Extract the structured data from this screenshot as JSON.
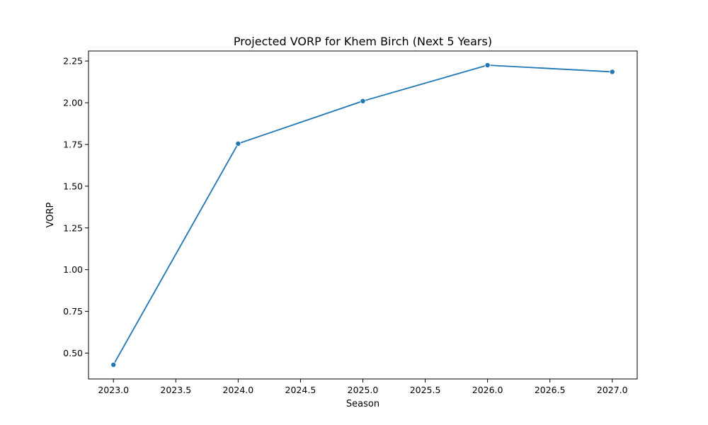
{
  "chart_data": {
    "type": "line",
    "title": "Projected VORP for Khem Birch (Next 5 Years)",
    "xlabel": "Season",
    "ylabel": "VORP",
    "x": [
      2023.0,
      2024.0,
      2025.0,
      2026.0,
      2027.0
    ],
    "series": [
      {
        "values": [
          0.43,
          1.755,
          2.01,
          2.225,
          2.185
        ],
        "color": "#1f77b4",
        "marker": "circle"
      }
    ],
    "xlim": [
      2022.8,
      2027.2
    ],
    "ylim": [
      0.345,
      2.31
    ],
    "xticks": [
      2023.0,
      2023.5,
      2024.0,
      2024.5,
      2025.0,
      2025.5,
      2026.0,
      2026.5,
      2027.0
    ],
    "xtick_labels": [
      "2023.0",
      "2023.5",
      "2024.0",
      "2024.5",
      "2025.0",
      "2025.5",
      "2026.0",
      "2026.5",
      "2027.0"
    ],
    "yticks": [
      0.5,
      0.75,
      1.0,
      1.25,
      1.5,
      1.75,
      2.0,
      2.25
    ],
    "ytick_labels": [
      "0.50",
      "0.75",
      "1.00",
      "1.25",
      "1.50",
      "1.75",
      "2.00",
      "2.25"
    ],
    "grid": false,
    "legend": false
  }
}
